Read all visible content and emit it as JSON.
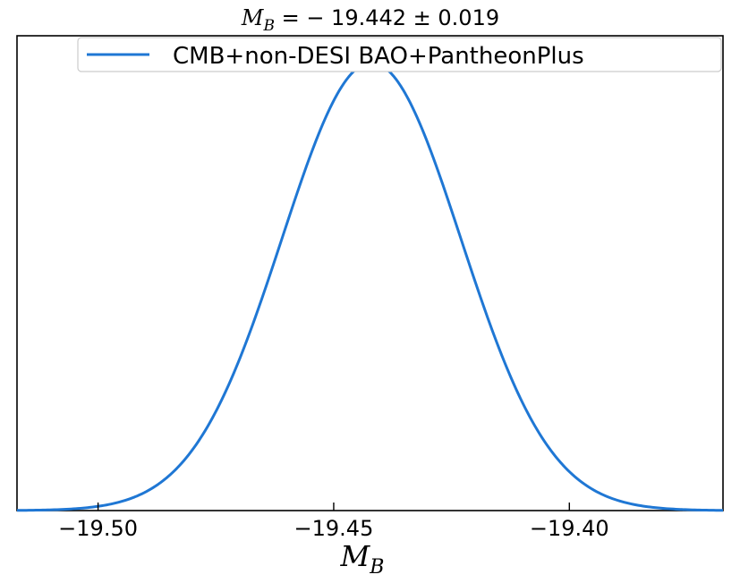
{
  "chart_data": {
    "type": "line",
    "title": "M_B = −19.442 ± 0.019",
    "title_parts": {
      "symbol": "M",
      "subscript": "B",
      "rest": " = − 19.442 ± 0.019"
    },
    "xlabel": "M_B",
    "xlabel_parts": {
      "symbol": "M",
      "subscript": "B"
    },
    "ylabel": "",
    "xlim": [
      -19.5172,
      -19.3674
    ],
    "ylim": [
      0,
      1.06
    ],
    "xticks": [
      {
        "value": -19.5,
        "label": "−19.50"
      },
      {
        "value": -19.45,
        "label": "−19.45"
      },
      {
        "value": -19.4,
        "label": "−19.40"
      }
    ],
    "yticks_visible": false,
    "grid": false,
    "legend": {
      "position": "top-right"
    },
    "series": [
      {
        "name": "CMB+non-DESI BAO+PantheonPlus",
        "color": "#1f77d4",
        "distribution": {
          "kind": "gaussian",
          "mean": -19.442,
          "sigma": 0.019
        }
      }
    ]
  }
}
